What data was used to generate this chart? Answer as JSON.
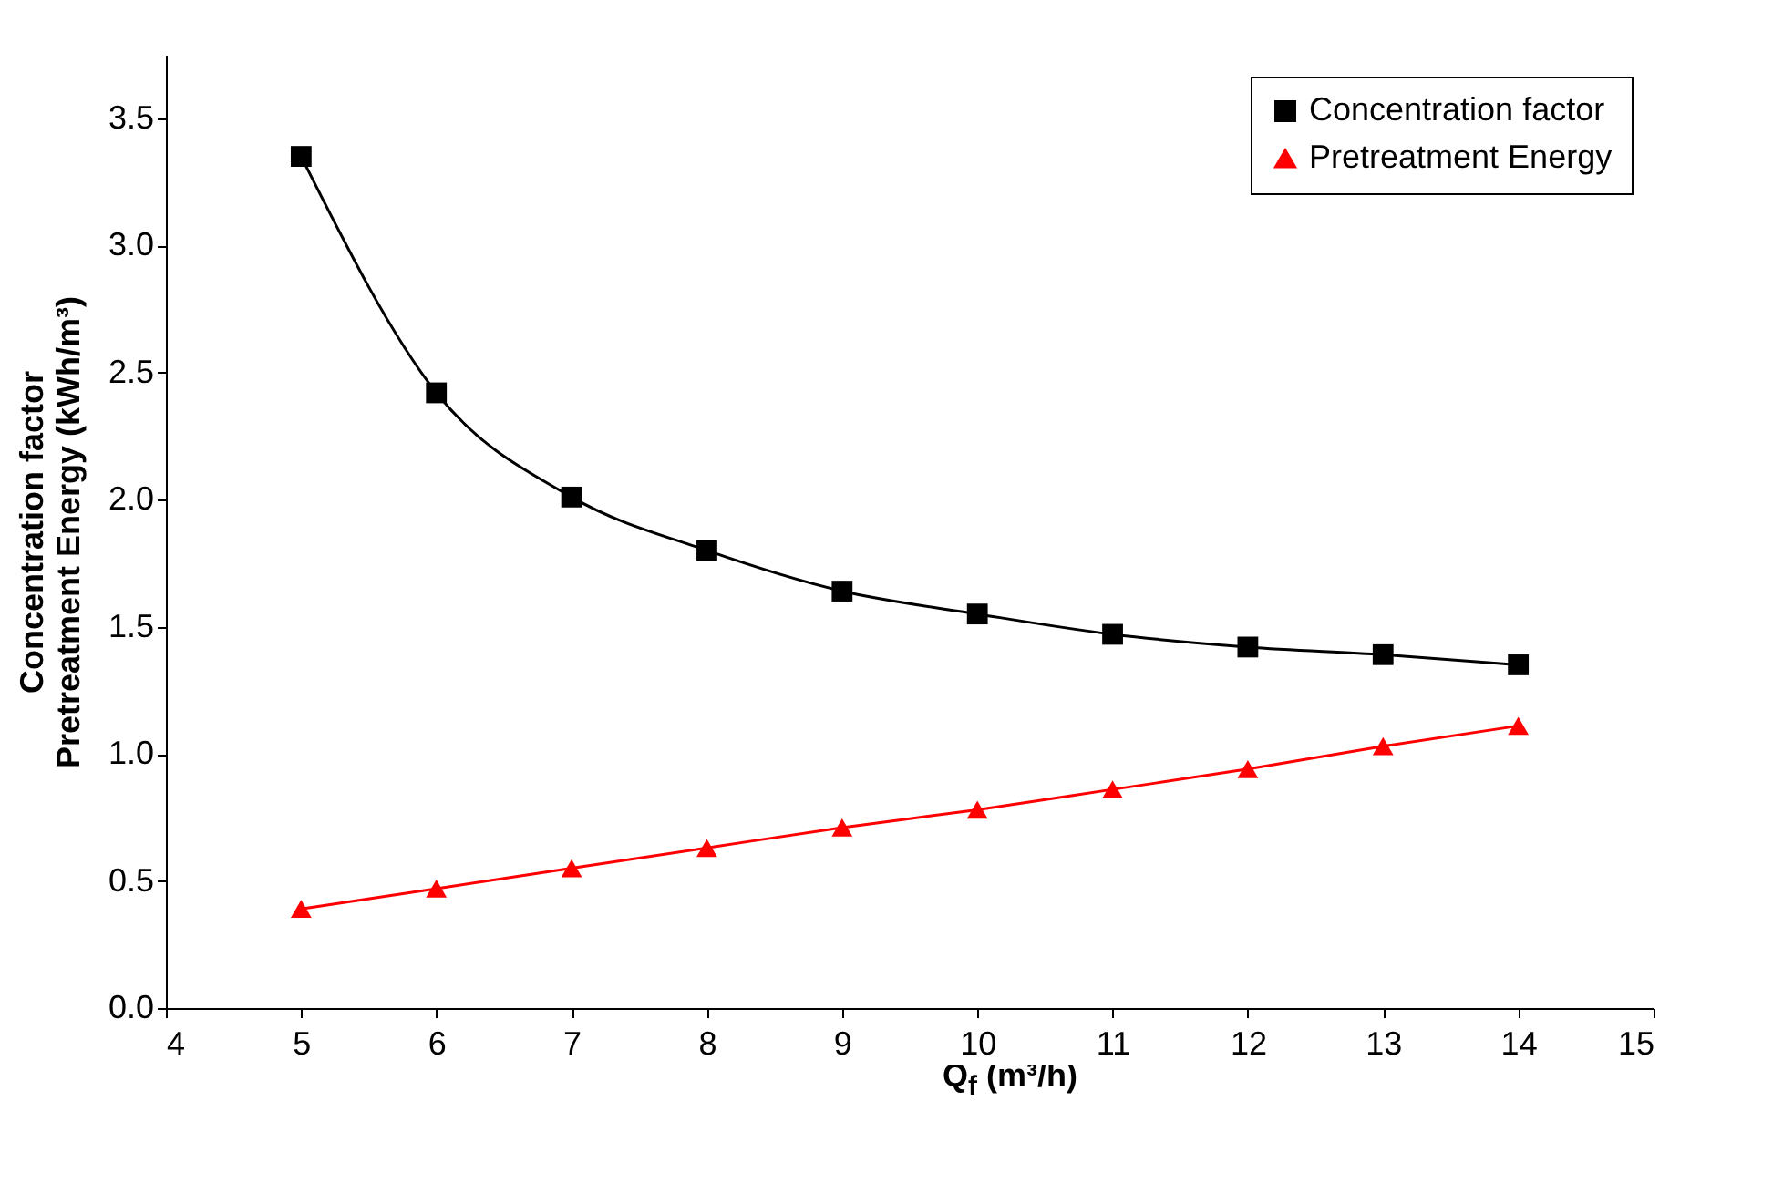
{
  "chart_data": {
    "type": "line",
    "xlabel": "Q$_{f}$ (m³/h)",
    "ylabel": [
      "Concentration factor",
      "Pretreatment Energy (kWh/m³)"
    ],
    "x": [
      5,
      6,
      7,
      8,
      9,
      10,
      11,
      12,
      13,
      14
    ],
    "series": [
      {
        "name": "Concentration factor",
        "color": "#000000",
        "marker": "square",
        "values": [
          3.35,
          2.42,
          2.01,
          1.8,
          1.64,
          1.55,
          1.47,
          1.42,
          1.39,
          1.35
        ]
      },
      {
        "name": "Pretreatment Energy",
        "color": "#ff0000",
        "marker": "triangle",
        "values": [
          0.39,
          0.47,
          0.55,
          0.63,
          0.71,
          0.78,
          0.86,
          0.94,
          1.03,
          1.11
        ]
      }
    ],
    "xlim": [
      4,
      15
    ],
    "xticks": [
      4,
      5,
      6,
      7,
      8,
      9,
      10,
      11,
      12,
      13,
      14,
      15
    ],
    "ylim": [
      0,
      3.75
    ],
    "yticks": [
      {
        "value": 0,
        "label": "0.0"
      },
      0.5,
      {
        "value": 1,
        "label": "1.0"
      },
      1.5,
      {
        "value": 2,
        "label": "2.0"
      },
      2.5,
      {
        "value": 3,
        "label": "3.0"
      },
      3.5
    ],
    "grid": false,
    "legend": "top right"
  }
}
